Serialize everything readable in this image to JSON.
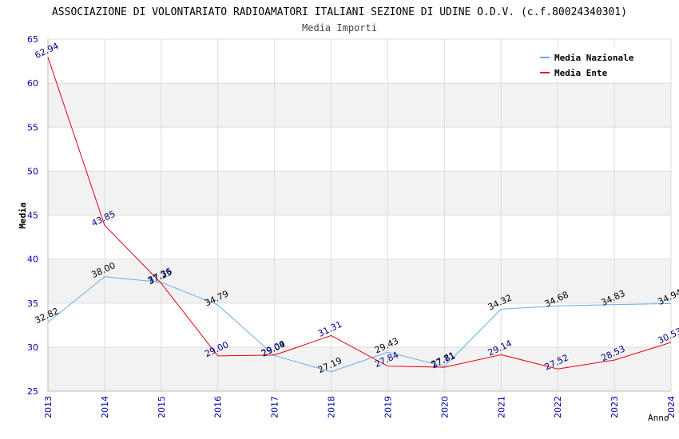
{
  "chart_data": {
    "type": "line",
    "title": "ASSOCIAZIONE DI VOLONTARIATO RADIOAMATORI ITALIANI SEZIONE DI UDINE O.D.V. (c.f.80024340301)",
    "subtitle": "Media Importi",
    "xlabel": "Anno",
    "ylabel": "Media",
    "ylim": [
      25,
      65
    ],
    "yticks": [
      25,
      30,
      35,
      40,
      45,
      50,
      55,
      60,
      65
    ],
    "categories": [
      "2013",
      "2014",
      "2015",
      "2016",
      "2017",
      "2018",
      "2019",
      "2020",
      "2021",
      "2022",
      "2023",
      "2024"
    ],
    "grid": true,
    "legend_position": "top-right",
    "series": [
      {
        "name": "Media Nazionale",
        "color": "#6aaee8",
        "label_color": "#000000",
        "values": [
          32.82,
          38.0,
          37.36,
          34.79,
          29.04,
          27.19,
          29.43,
          27.81,
          34.32,
          34.68,
          34.83,
          34.94
        ],
        "labels": [
          "32.82",
          "38.00",
          "37.36",
          "34.79",
          "29.04",
          "27.19",
          "29.43",
          "27.81",
          "34.32",
          "34.68",
          "34.83",
          "34.94"
        ]
      },
      {
        "name": "Media Ente",
        "color": "#e8000b",
        "label_color": "#000080",
        "values": [
          62.94,
          43.85,
          37.25,
          29.0,
          29.09,
          31.31,
          27.84,
          27.71,
          29.14,
          27.52,
          28.53,
          30.53
        ],
        "labels": [
          "62.94",
          "43.85",
          "37.25",
          "29.00",
          "29.09",
          "31.31",
          "27.84",
          "27.71",
          "29.14",
          "27.52",
          "28.53",
          "30.53"
        ]
      }
    ]
  }
}
